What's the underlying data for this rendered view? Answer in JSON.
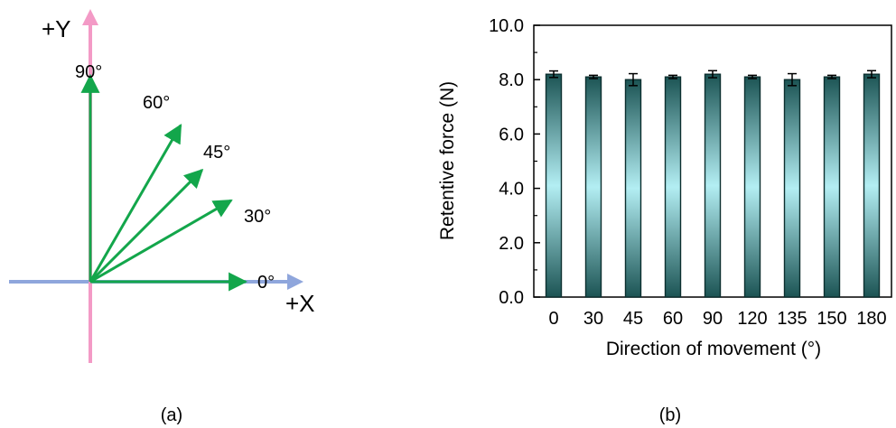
{
  "panel_a": {
    "label": "(a)",
    "axis_x_label": "+X",
    "axis_y_label": "+Y",
    "colors": {
      "x_axis": "#8fa6dc",
      "y_axis": "#f39ac6",
      "vector": "#13a64b"
    },
    "vectors": [
      {
        "angle": 0,
        "label": "0°"
      },
      {
        "angle": 30,
        "label": "30°"
      },
      {
        "angle": 45,
        "label": "45°"
      },
      {
        "angle": 60,
        "label": "60°"
      },
      {
        "angle": 90,
        "label": "90°"
      }
    ]
  },
  "panel_b": {
    "label": "(b)"
  },
  "chart_data": {
    "type": "bar",
    "xlabel": "Direction of movement (°)",
    "ylabel": "Retentive force (N)",
    "ylim": [
      0,
      10
    ],
    "yticks": [
      "0.0",
      "2.0",
      "4.0",
      "6.0",
      "8.0",
      "10.0"
    ],
    "categories": [
      "0",
      "30",
      "45",
      "60",
      "90",
      "120",
      "135",
      "150",
      "180"
    ],
    "values": [
      8.2,
      8.1,
      8.0,
      8.1,
      8.2,
      8.1,
      8.0,
      8.1,
      8.2
    ],
    "errors": [
      0.12,
      0.06,
      0.22,
      0.06,
      0.13,
      0.06,
      0.22,
      0.06,
      0.13
    ],
    "bar_colors": {
      "edge": "#1c5454",
      "center": "#b3eef3",
      "outline": "#0c2f2f"
    },
    "grid": false,
    "legend": "none"
  }
}
